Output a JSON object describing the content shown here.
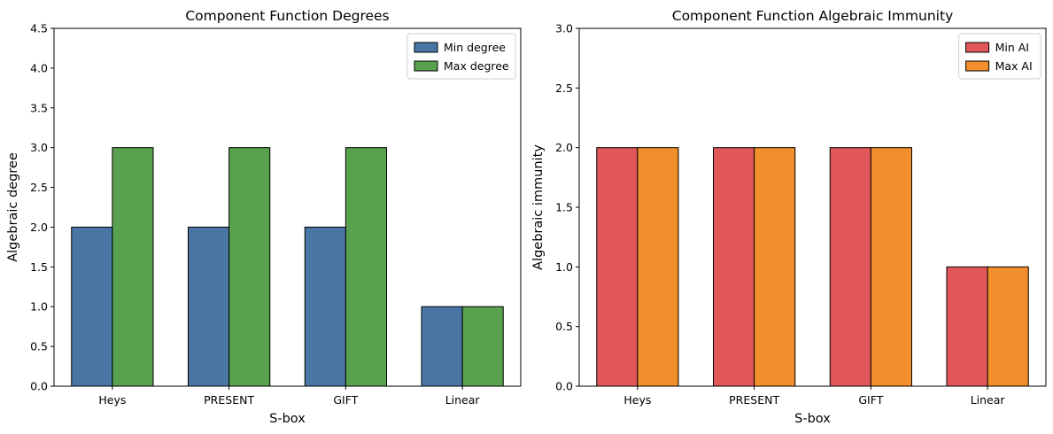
{
  "chart_data": [
    {
      "type": "bar",
      "title": "Component Function Degrees",
      "xlabel": "S-box",
      "ylabel": "Algebraic degree",
      "categories": [
        "Heys",
        "PRESENT",
        "GIFT",
        "Linear"
      ],
      "ylim": [
        0,
        4.5
      ],
      "yticks": [
        "0.0",
        "0.5",
        "1.0",
        "1.5",
        "2.0",
        "2.5",
        "3.0",
        "3.5",
        "4.0",
        "4.5"
      ],
      "legend_position": "top-right",
      "series": [
        {
          "name": "Min degree",
          "values": [
            2,
            2,
            2,
            1
          ],
          "color": "#4a76a5"
        },
        {
          "name": "Max degree",
          "values": [
            3,
            3,
            3,
            1
          ],
          "color": "#59a14f"
        }
      ]
    },
    {
      "type": "bar",
      "title": "Component Function Algebraic Immunity",
      "xlabel": "S-box",
      "ylabel": "Algebraic immunity",
      "categories": [
        "Heys",
        "PRESENT",
        "GIFT",
        "Linear"
      ],
      "ylim": [
        0,
        3.0
      ],
      "yticks": [
        "0.0",
        "0.5",
        "1.0",
        "1.5",
        "2.0",
        "2.5",
        "3.0"
      ],
      "legend_position": "top-right",
      "series": [
        {
          "name": "Min AI",
          "values": [
            2,
            2,
            2,
            1
          ],
          "color": "#e15759"
        },
        {
          "name": "Max AI",
          "values": [
            2,
            2,
            2,
            1
          ],
          "color": "#f28e2b"
        }
      ]
    }
  ]
}
